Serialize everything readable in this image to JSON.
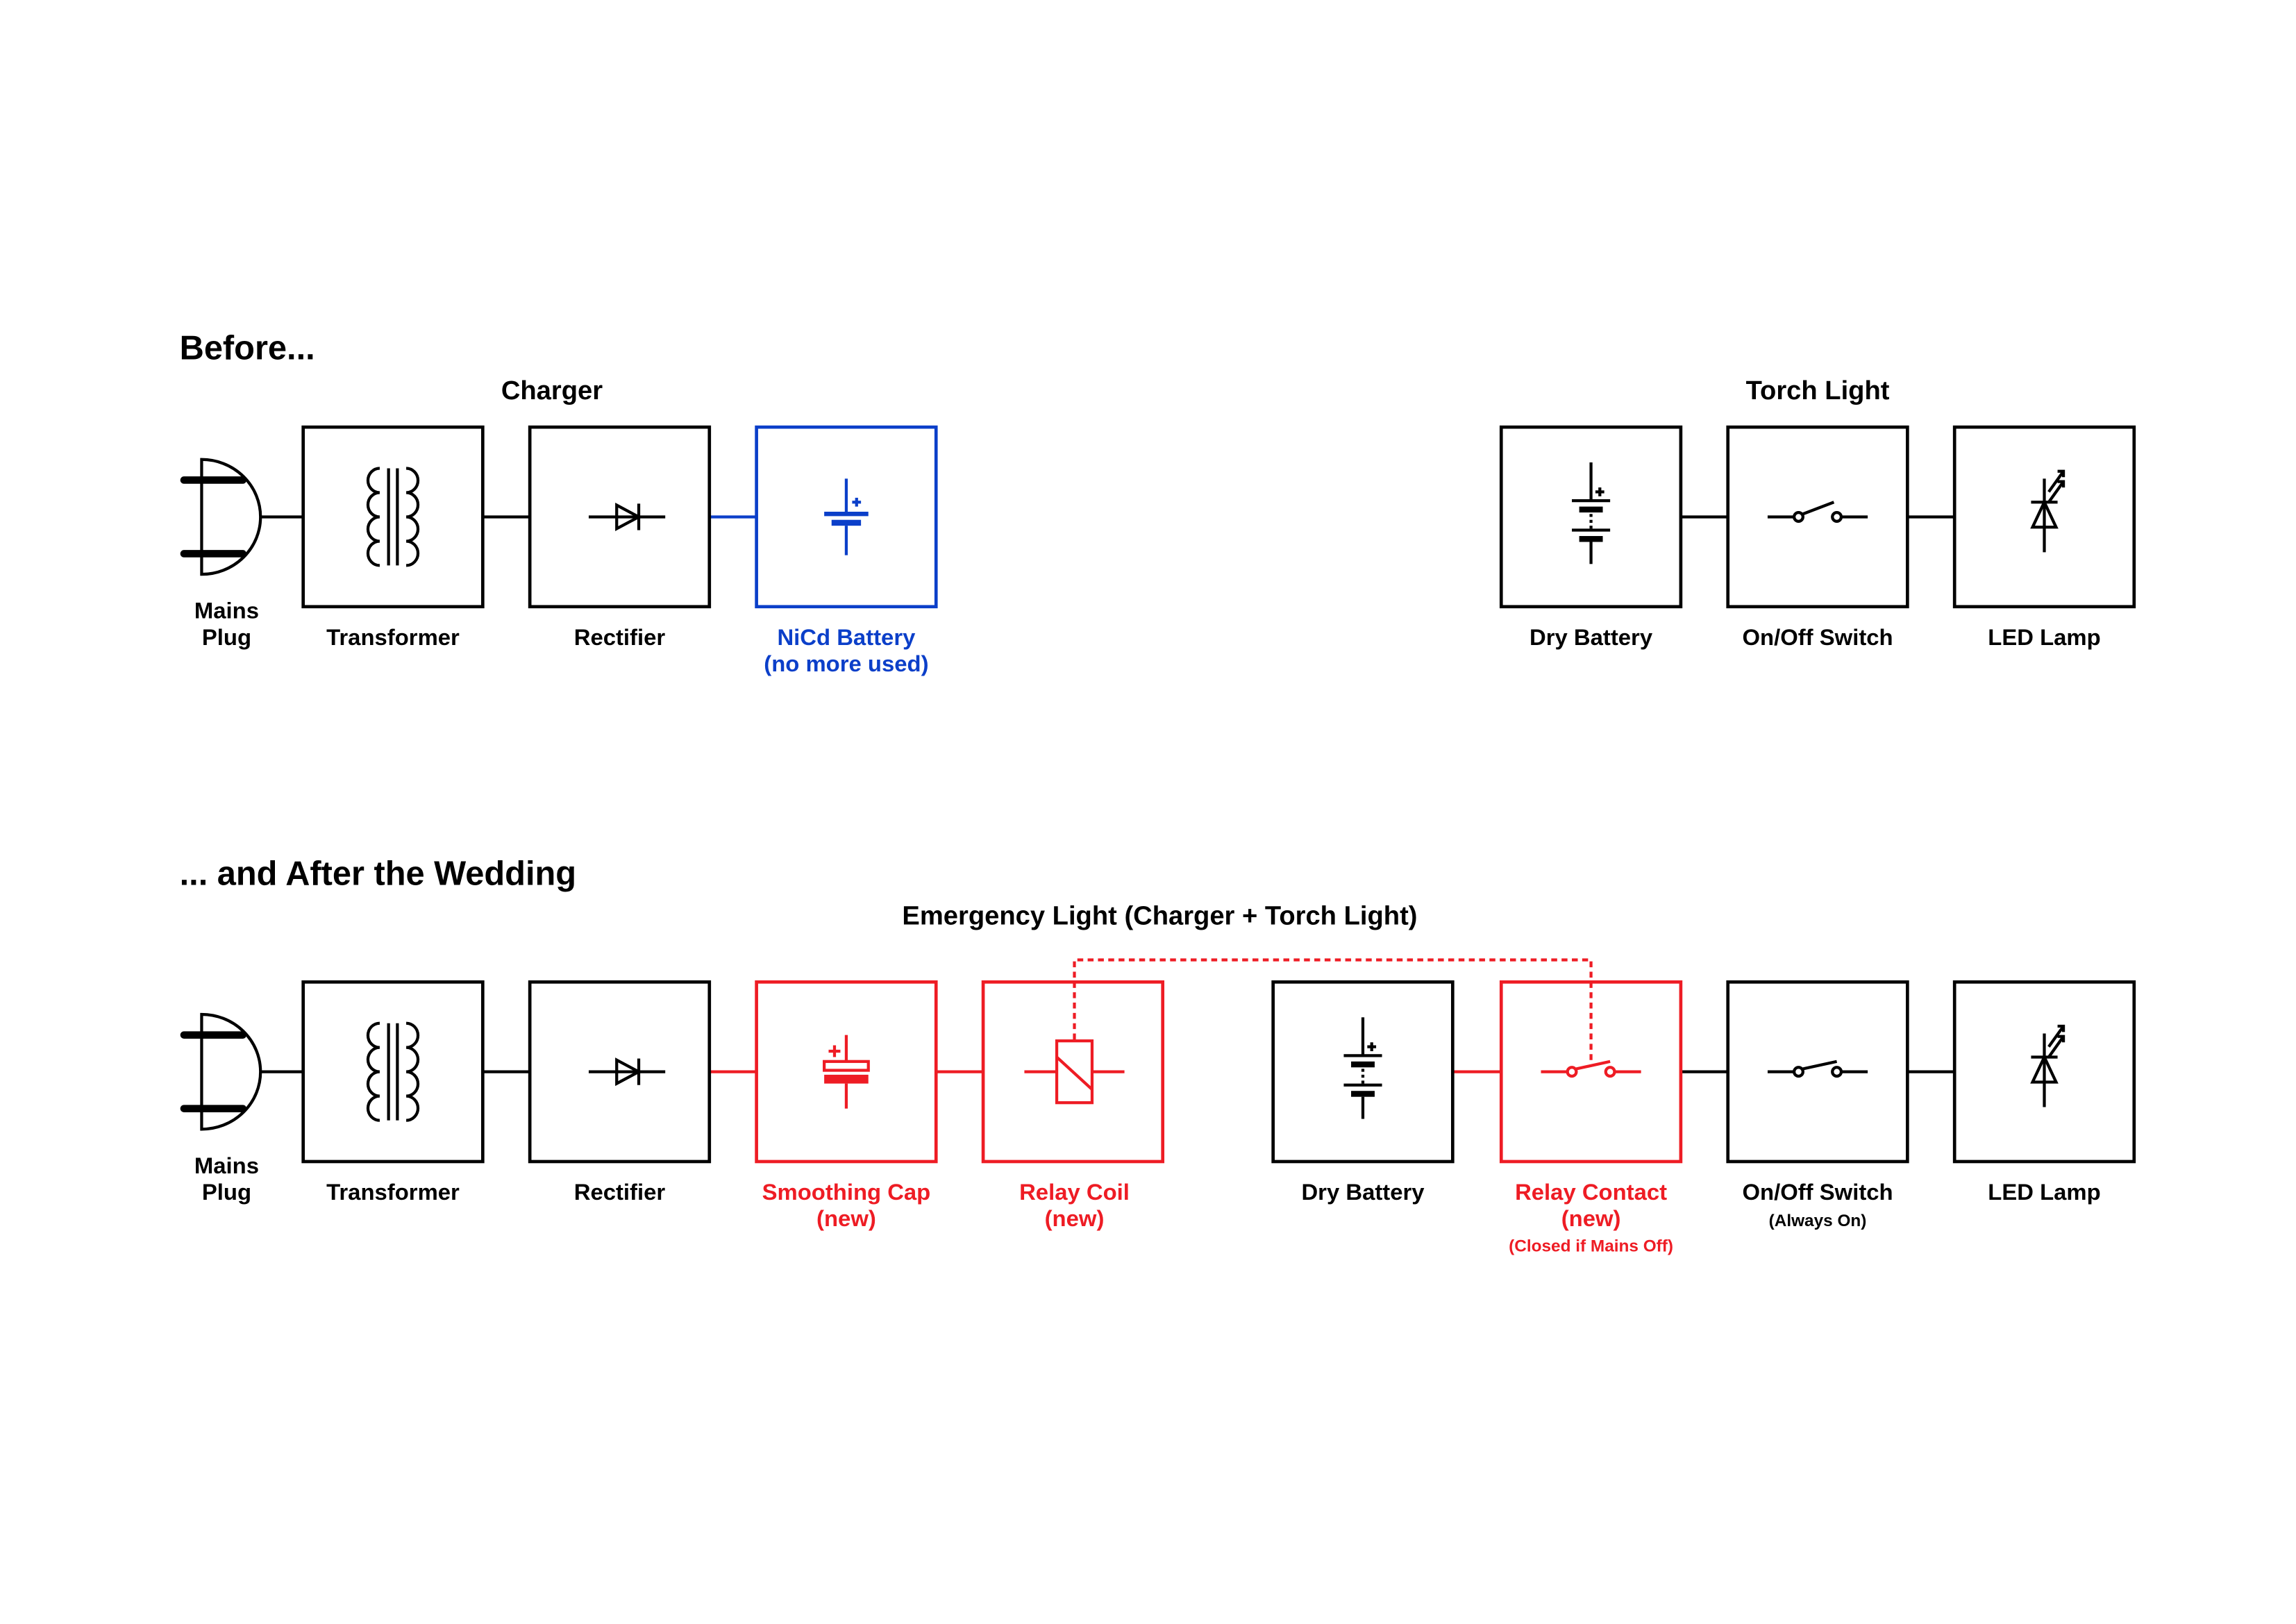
{
  "colors": {
    "normal": "#000000",
    "unused": "#0b3fc9",
    "new": "#ee1c24"
  },
  "before": {
    "heading": "Before...",
    "charger": {
      "title": "Charger",
      "mains_plug": [
        "Mains",
        "Plug"
      ],
      "transformer": "Transformer",
      "rectifier": "Rectifier",
      "nicd_battery": [
        "NiCd Battery",
        "(no more used)"
      ]
    },
    "torch": {
      "title": "Torch Light",
      "dry_battery": "Dry Battery",
      "switch": "On/Off Switch",
      "led_lamp": "LED Lamp"
    }
  },
  "after": {
    "heading": "... and After the Wedding",
    "title": "Emergency Light (Charger + Torch Light)",
    "mains_plug": [
      "Mains",
      "Plug"
    ],
    "transformer": "Transformer",
    "rectifier": "Rectifier",
    "smoothing_cap": [
      "Smoothing Cap",
      "(new)"
    ],
    "relay_coil": [
      "Relay Coil",
      "(new)"
    ],
    "dry_battery": "Dry Battery",
    "relay_contact": [
      "Relay Contact",
      "(new)",
      "(Closed if Mains Off)"
    ],
    "switch": [
      "On/Off Switch",
      "(Always On)"
    ],
    "led_lamp": "LED Lamp"
  }
}
